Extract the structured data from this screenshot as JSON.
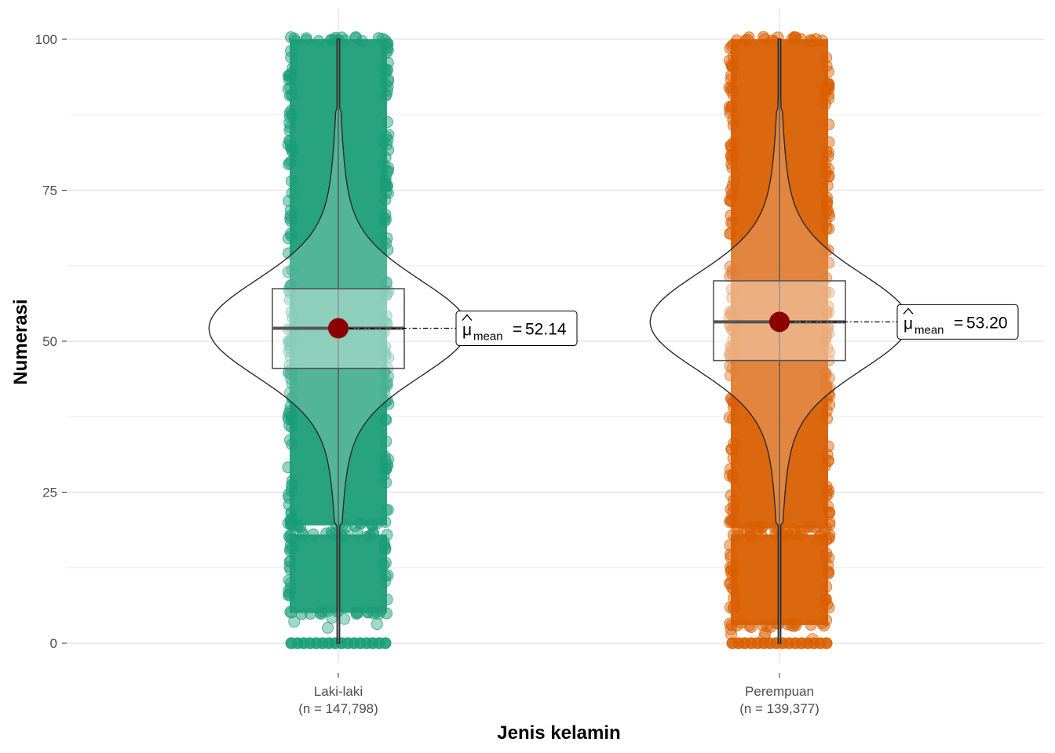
{
  "chart_data": {
    "type": "violin-box-jitter",
    "xlabel": "Jenis kelamin",
    "ylabel": "Numerasi",
    "ylim": [
      0,
      100
    ],
    "yticks": [
      0,
      25,
      50,
      75,
      100
    ],
    "grid": true,
    "groups": [
      {
        "name": "Laki-laki",
        "n_label": "(n = 147,798)",
        "color": "#1b9e77",
        "box": {
          "q1": 45.5,
          "median": 52.14,
          "q3": 58.7,
          "whisker_low": 0,
          "whisker_high": 100
        },
        "mean": 52.14,
        "mean_label": "52.14",
        "jitter_bands": [
          [
            0,
            0
          ],
          [
            5,
            18
          ],
          [
            19.5,
            100
          ]
        ]
      },
      {
        "name": "Perempuan",
        "n_label": "(n = 139,377)",
        "color": "#d95f02",
        "box": {
          "q1": 46.8,
          "median": 53.2,
          "q3": 60,
          "whisker_low": 0,
          "whisker_high": 100
        },
        "mean": 53.2,
        "mean_label": "53.20",
        "jitter_bands": [
          [
            0,
            0
          ],
          [
            3,
            18
          ],
          [
            19,
            100
          ]
        ]
      }
    ],
    "mean_symbol": "μ",
    "mean_subscript": "mean",
    "mean_point_color": "#8b0000"
  }
}
